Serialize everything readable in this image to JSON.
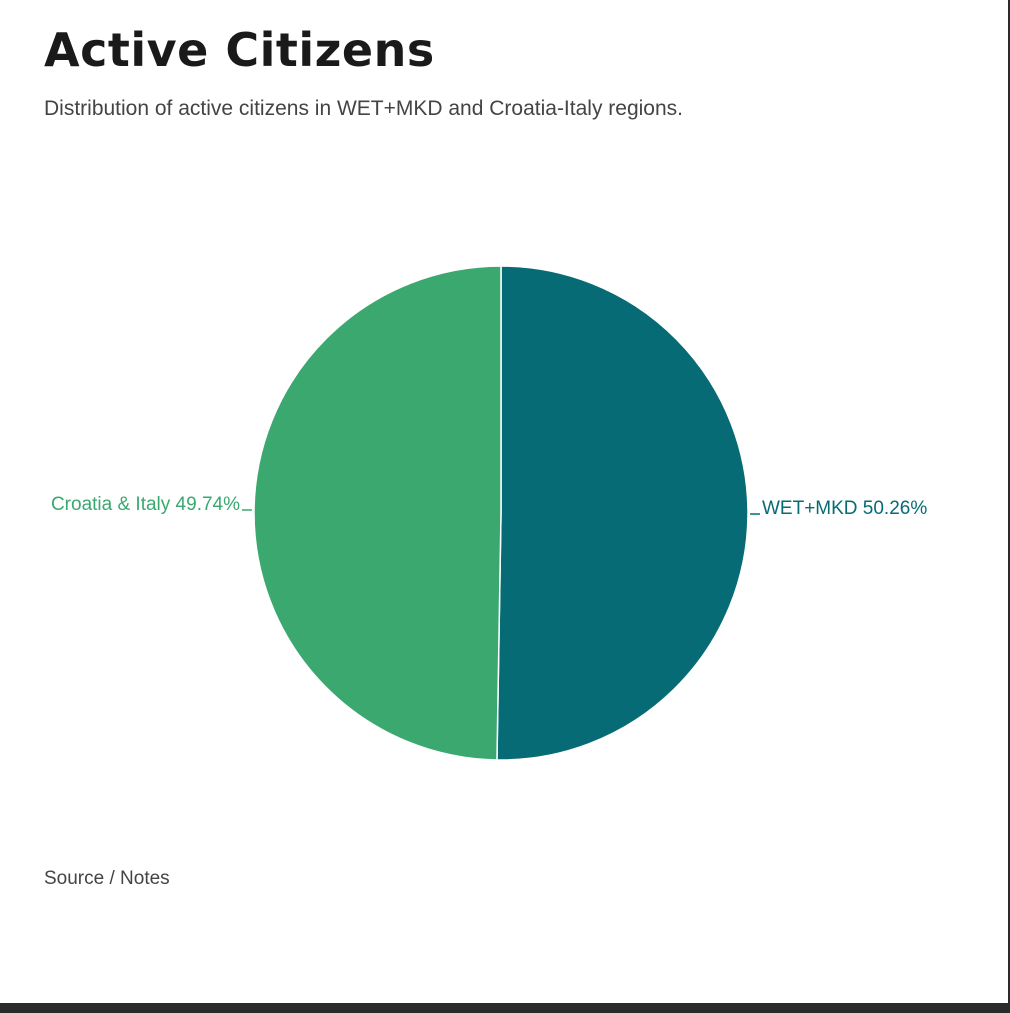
{
  "header": {
    "title": "Active Citizens",
    "subtitle": "Distribution of active citizens in WET+MKD and Croatia-Italy regions."
  },
  "footer": {
    "source_label": "Source / Notes"
  },
  "colors": {
    "wet_mkd": "#066b74",
    "croatia_italy": "#3ba870",
    "text": "#444444",
    "title": "#1a1a1a"
  },
  "chart_data": {
    "type": "pie",
    "title": "Active Citizens",
    "subtitle": "Distribution of active citizens in WET+MKD and Croatia-Italy regions.",
    "slices": [
      {
        "label": "WET+MKD 50.26%",
        "name": "WET+MKD",
        "value": 50.26,
        "color": "#066b74"
      },
      {
        "label": "Croatia & Italy 49.74%",
        "name": "Croatia & Italy",
        "value": 49.74,
        "color": "#3ba870"
      }
    ],
    "start_angle_deg": 0,
    "direction": "clockwise",
    "legend": "none"
  }
}
